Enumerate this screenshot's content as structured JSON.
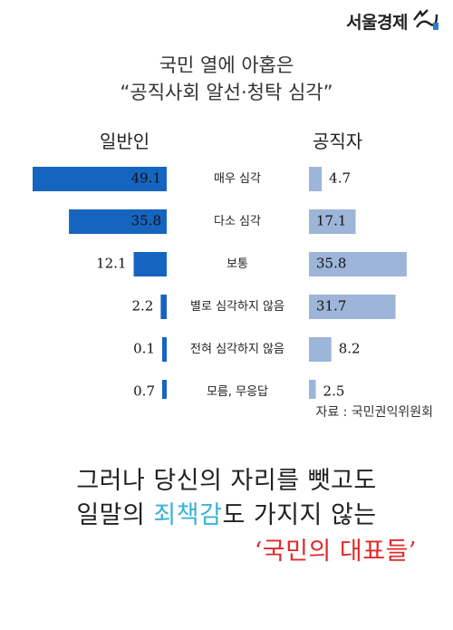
{
  "brand": {
    "name": "서울경제",
    "logo_icon": "sedaily-mark-icon"
  },
  "title": {
    "line1": "국민 열에 아홉은",
    "line2": "“공직사회 알선·청탁 심각”"
  },
  "source": "자료 : 국민권익위원회",
  "message": {
    "line1": "그러나 당신의 자리를 뺏고도",
    "line2_pre": "일말의 ",
    "line2_highlight": "죄책감",
    "line2_post": "도 가지지 않는",
    "line3": "‘국민의 대표들’"
  },
  "colors": {
    "general": "#1565c0",
    "official": "#9db5d8",
    "highlight": "#39b3d6",
    "accent": "#e02a2a"
  },
  "chart_data": {
    "type": "bar",
    "categories": [
      "매우 심각",
      "다소 심각",
      "보통",
      "별로 심각하지 않음",
      "전혀 심각하지 않음",
      "모름, 무응답"
    ],
    "series": [
      {
        "name": "일반인",
        "values": [
          49.1,
          35.8,
          12.1,
          2.2,
          0.1,
          0.7
        ],
        "color": "#1565c0"
      },
      {
        "name": "공직자",
        "values": [
          4.7,
          17.1,
          35.8,
          31.7,
          8.2,
          2.5
        ],
        "color": "#9db5d8"
      }
    ],
    "value_labels": {
      "일반인": [
        "49.1",
        "35.8",
        "12.1",
        "2.2",
        "0.1",
        "0.7"
      ],
      "공직자": [
        "4.7",
        "17.1",
        "35.8",
        "31.7",
        "8.2",
        "2.5"
      ]
    },
    "layout": "diverging-horizontal"
  }
}
